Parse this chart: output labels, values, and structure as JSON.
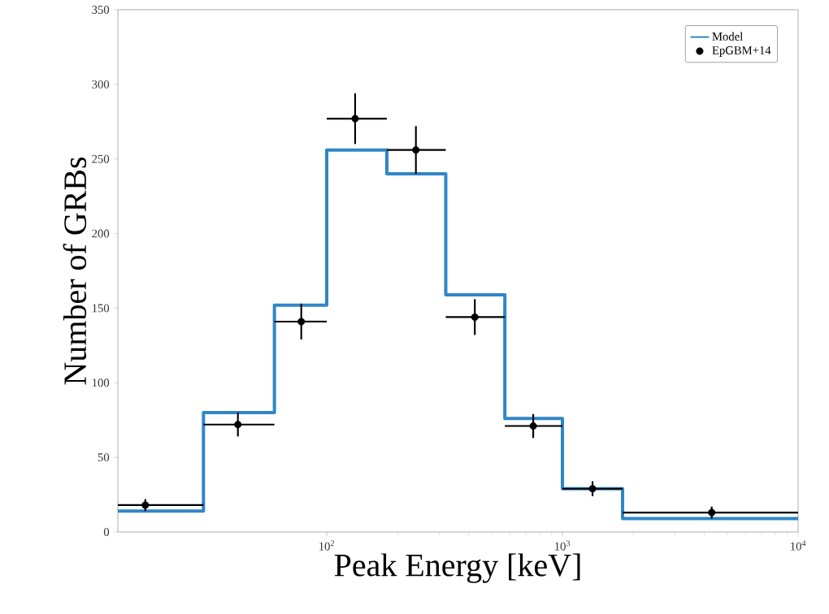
{
  "chart_data": {
    "type": "histogram",
    "xlabel": "Peak Energy [keV]",
    "ylabel": "Number of GRBs",
    "bins": [
      13,
      30,
      60,
      100,
      180,
      320,
      570,
      1000,
      1800,
      10000
    ],
    "series": [
      {
        "name": "Model",
        "color": "#2f86c6",
        "values": [
          14,
          80,
          152,
          256,
          240,
          159,
          76,
          29,
          9
        ]
      },
      {
        "name": "EpGBM+14",
        "type": "scatter",
        "color": "#000000",
        "x": [
          17,
          42,
          78,
          132,
          239,
          425,
          752,
          1342,
          4300
        ],
        "values": [
          18,
          72,
          141,
          277,
          256,
          144,
          71,
          29,
          13
        ],
        "errors": [
          4,
          8,
          12,
          17,
          16,
          12,
          8,
          5,
          4
        ],
        "xerrors": [
          [
            13,
            30
          ],
          [
            30,
            60
          ],
          [
            60,
            100
          ],
          [
            100,
            180
          ],
          [
            180,
            320
          ],
          [
            320,
            570
          ],
          [
            570,
            1000
          ],
          [
            1000,
            1800
          ],
          [
            1800,
            10000
          ]
        ]
      }
    ],
    "log": "x",
    "xlim": [
      13,
      10000
    ],
    "ylim": [
      0,
      350
    ],
    "xticks": [
      {
        "value": 100,
        "label": "10$^{2}$"
      },
      {
        "value": 1000,
        "label": "10$^{3}$"
      },
      {
        "value": 10000,
        "label": "10$^{4}$"
      }
    ],
    "yticks": [
      0,
      50,
      100,
      150,
      200,
      250,
      300,
      350
    ],
    "grid": false,
    "legend": "top right"
  }
}
